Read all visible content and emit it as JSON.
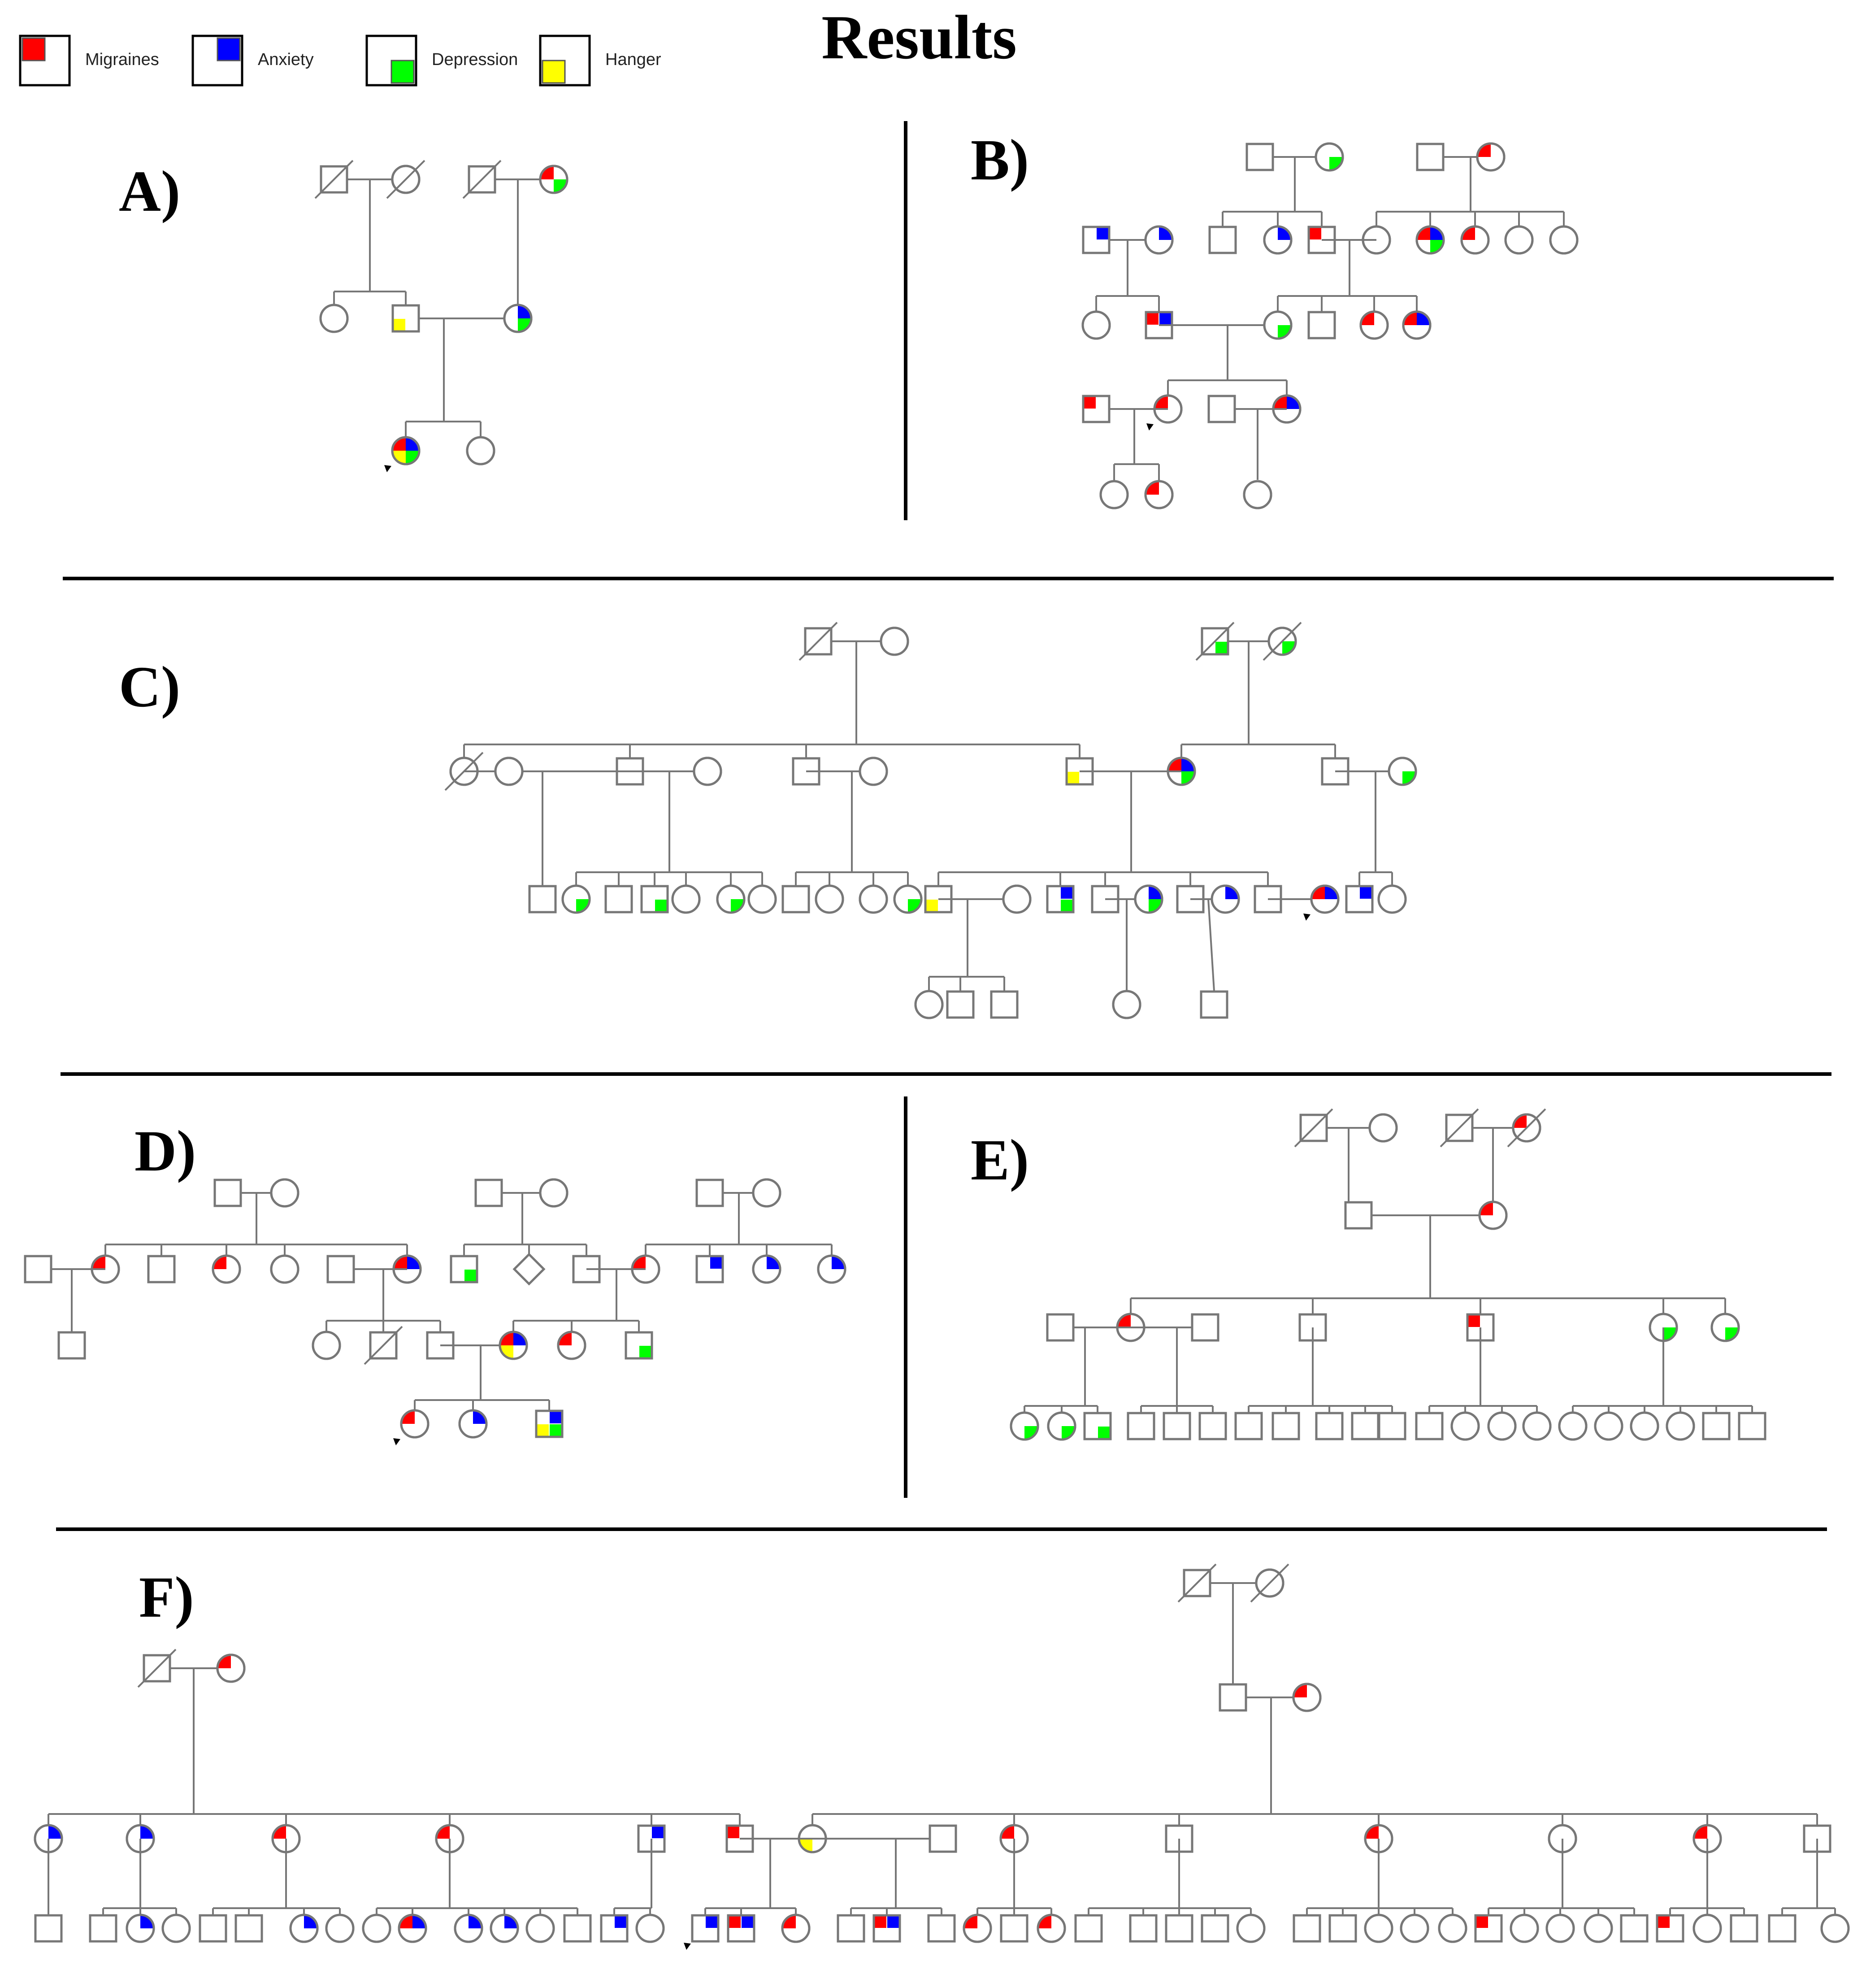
{
  "title": "Results",
  "colors": {
    "migraines": "#ff0000",
    "anxiety": "#0000ff",
    "depression": "#00ff00",
    "hanger": "#ffff00",
    "line": "#777777"
  },
  "legend": [
    {
      "label": "Migraines",
      "trait": "migraines"
    },
    {
      "label": "Anxiety",
      "trait": "anxiety"
    },
    {
      "label": "Depression",
      "trait": "depression"
    },
    {
      "label": "Hanger",
      "trait": "hanger"
    }
  ],
  "pedigrees": [
    {
      "id": "A",
      "label": "A)"
    },
    {
      "id": "B",
      "label": "B)"
    },
    {
      "id": "C",
      "label": "C)"
    },
    {
      "id": "D",
      "label": "D)"
    },
    {
      "id": "E",
      "label": "E)"
    },
    {
      "id": "F",
      "label": "F)"
    }
  ]
}
